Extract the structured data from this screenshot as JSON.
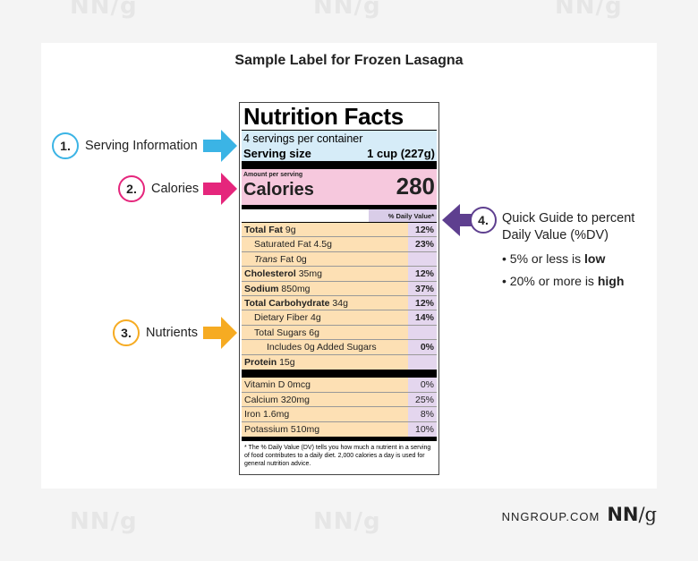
{
  "title": "Sample Label for Frozen Lasagna",
  "label": {
    "heading": "Nutrition Facts",
    "servings_per_container": "4 servings per container",
    "serving_size_label": "Serving size",
    "serving_size_value": "1 cup (227g)",
    "amount_per_serving": "Amount per serving",
    "calories_label": "Calories",
    "calories_value": "280",
    "daily_value_header": "% Daily Value*",
    "nutrients": [
      {
        "name": "Total Fat",
        "amount": "9g",
        "dv": "12%"
      },
      {
        "name": "Saturated Fat",
        "amount": "4.5g",
        "dv": "23%"
      },
      {
        "name": "Trans",
        "amount": "Fat 0g",
        "dv": ""
      },
      {
        "name": "Cholesterol",
        "amount": "35mg",
        "dv": "12%"
      },
      {
        "name": "Sodium",
        "amount": "850mg",
        "dv": "37%"
      },
      {
        "name": "Total Carbohydrate",
        "amount": "34g",
        "dv": "12%"
      },
      {
        "name": "Dietary Fiber",
        "amount": "4g",
        "dv": "14%"
      },
      {
        "name": "Total Sugars",
        "amount": "6g",
        "dv": ""
      },
      {
        "name": "Includes 0g Added Sugars",
        "amount": "",
        "dv": "0%"
      },
      {
        "name": "Protein",
        "amount": "15g",
        "dv": ""
      }
    ],
    "vitamins": [
      {
        "name": "Vitamin D 0mcg",
        "dv": "0%"
      },
      {
        "name": "Calcium 320mg",
        "dv": "25%"
      },
      {
        "name": "Iron 1.6mg",
        "dv": "8%"
      },
      {
        "name": "Potassium 510mg",
        "dv": "10%"
      }
    ],
    "footnote": "* The % Daily Value (DV) tells you how much a nutrient in a serving of food contributes to a daily diet. 2,000 calories a day is used for general nutrition advice."
  },
  "callouts": [
    {
      "number": "1.",
      "text": "Serving Information",
      "color": "#3bb4e5"
    },
    {
      "number": "2.",
      "text": "Calories",
      "color": "#e5267c"
    },
    {
      "number": "3.",
      "text": "Nutrients",
      "color": "#f6ab22"
    },
    {
      "number": "4.",
      "text": "Quick Guide to percent Daily Value (%DV)",
      "color": "#5e3f8f"
    }
  ],
  "guide": {
    "bullet1_prefix": "• 5% or less is ",
    "bullet1_bold": "low",
    "bullet2_prefix": "• 20% or more is ",
    "bullet2_bold": "high"
  },
  "brand": {
    "url": "NNGROUP.COM",
    "logo_nn": "NN",
    "logo_g": "/g"
  },
  "watermark_text": "NN/g"
}
